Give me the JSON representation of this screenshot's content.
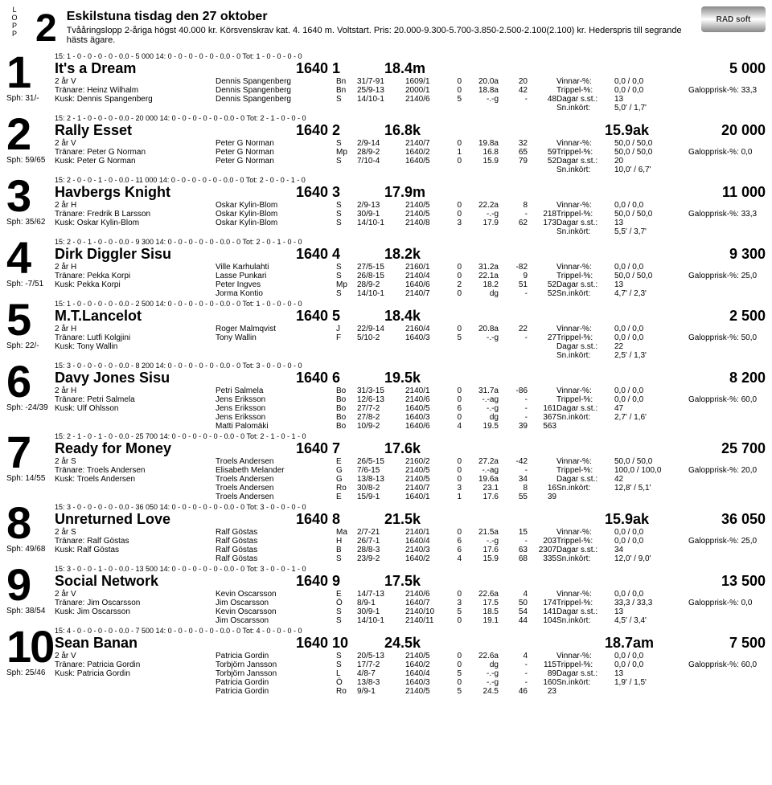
{
  "header": {
    "lopp_label": "L\nO\nP\nP",
    "race_no": "2",
    "title": "Eskilstuna tisdag den 27 oktober",
    "description": "Tvååringslopp 2-åriga högst 40.000 kr. Körsvenskrav kat. 4. 1640 m. Voltstart. Pris: 20.000-9.300-5.700-3.850-2.500-2.100(2.100) kr. Hederspris till segrande hästs ägare.",
    "logo_text": "RAD soft"
  },
  "entries": [
    {
      "num": "1",
      "sph": "Sph: 31/-",
      "stats_top": "15: 1   - 0   - 0   - 0   - 0   - 0.0         - 5 000                           14: 0   - 0   - 0   - 0   - 0   - 0.0            - 0                                                  Tot: 1   - 0   - 0   - 0   - 0",
      "name": "It's a Dream",
      "dist": "1640  1",
      "rec": "18.4m",
      "extra": "",
      "prize": "5 000",
      "age": "2 år  V",
      "trainer": "Tränare: Heinz Wilhalm",
      "kusk": "Kusk: Dennis Spangenberg",
      "right": [
        [
          "Vinnar-%:",
          "0,0 / 0,0",
          ""
        ],
        [
          "Trippel-%:",
          "0,0 / 0,0",
          "Galopprisk-%:       33,3"
        ],
        [
          "Dagar s.st.:",
          "13",
          ""
        ],
        [
          "Sn.inkört:",
          "5,0' / 1,7'",
          ""
        ]
      ],
      "results": [
        [
          "Dennis Spangenberg",
          "Bn",
          "31/7-91",
          "1609/1",
          "0",
          "20.0a",
          "20",
          ""
        ],
        [
          "Dennis Spangenberg",
          "Bn",
          "25/9-13",
          "2000/1",
          "0",
          "18.8a",
          "42",
          ""
        ],
        [
          "Dennis Spangenberg",
          "S",
          "14/10-1",
          "2140/6",
          "5",
          "-.-g",
          "-",
          "48"
        ]
      ]
    },
    {
      "num": "2",
      "sph": "Sph: 59/65",
      "stats_top": "15: 2   - 1   - 0   - 0   - 0   - 0.0         - 20 000                          14: 0   - 0   - 0   - 0   - 0   - 0.0            - 0                                                  Tot: 2   - 1   - 0   - 0   - 0",
      "name": "Rally Esset",
      "dist": "1640  2",
      "rec": "16.8k",
      "extra": "15.9ak",
      "prize": "20 000",
      "age": "2 år  V",
      "trainer": "Tränare: Peter G Norman",
      "kusk": "Kusk: Peter G Norman",
      "right": [
        [
          "Vinnar-%:",
          "50,0 / 50,0",
          ""
        ],
        [
          "Trippel-%:",
          "50,0 / 50,0",
          "Galopprisk-%:       0,0"
        ],
        [
          "Dagar s.st.:",
          "20",
          ""
        ],
        [
          "Sn.inkört:",
          "10,0' / 6,7'",
          ""
        ]
      ],
      "results": [
        [
          "Peter G Norman",
          "S",
          "2/9-14",
          "2140/7",
          "0",
          "19.8a",
          "32",
          ""
        ],
        [
          "Peter G Norman",
          "Mp",
          "28/9-2",
          "1640/2",
          "1",
          "16.8",
          "65",
          "59"
        ],
        [
          "Peter G Norman",
          "S",
          "7/10-4",
          "1640/5",
          "0",
          "15.9",
          "79",
          "52"
        ]
      ]
    },
    {
      "num": "3",
      "sph": "Sph: 35/62",
      "stats_top": "15: 2   - 0   - 0   - 1   - 0   - 0.0         - 11 000                          14: 0   - 0   - 0   - 0   - 0   - 0.0            - 0                                                  Tot: 2   - 0   - 0   - 1   - 0",
      "name": "Havbergs Knight",
      "dist": "1640  3",
      "rec": "17.9m",
      "extra": "",
      "prize": "11 000",
      "age": "2 år  H",
      "trainer": "Tränare: Fredrik B Larsson",
      "kusk": "Kusk: Oskar Kylin-Blom",
      "right": [
        [
          "Vinnar-%:",
          "0,0 / 0,0",
          ""
        ],
        [
          "Trippel-%:",
          "50,0 / 50,0",
          "Galopprisk-%:       33,3"
        ],
        [
          "Dagar s.st.:",
          "13",
          ""
        ],
        [
          "Sn.inkört:",
          "5,5' / 3,7'",
          ""
        ]
      ],
      "results": [
        [
          "Oskar Kylin-Blom",
          "S",
          "2/9-13",
          "2140/5",
          "0",
          "22.2a",
          "8",
          ""
        ],
        [
          "Oskar Kylin-Blom",
          "S",
          "30/9-1",
          "2140/5",
          "0",
          "-.-g",
          "-",
          "218"
        ],
        [
          "Oskar Kylin-Blom",
          "S",
          "14/10-1",
          "2140/8",
          "3",
          "17.9",
          "62",
          "173"
        ]
      ]
    },
    {
      "num": "4",
      "sph": "Sph: -7/51",
      "stats_top": "15: 2   - 0   - 1   - 0   - 0   - 0.0         - 9 300                           14: 0   - 0   - 0   - 0   - 0   - 0.0            - 0                                                  Tot: 2   - 0   - 1   - 0   - 0",
      "name": "Dirk Diggler Sisu",
      "dist": "1640  4",
      "rec": "18.2k",
      "extra": "",
      "prize": "9 300",
      "age": "2 år  H",
      "trainer": "Tränare: Pekka Korpi",
      "kusk": "Kusk: Pekka Korpi",
      "right": [
        [
          "Vinnar-%:",
          "0,0 / 0,0",
          ""
        ],
        [
          "Trippel-%:",
          "50,0 / 50,0",
          "Galopprisk-%:       25,0"
        ],
        [
          "Dagar s.st.:",
          "13",
          ""
        ],
        [
          "Sn.inkört:",
          "4,7' / 2,3'",
          ""
        ]
      ],
      "results": [
        [
          "Ville Karhulahti",
          "S",
          "27/5-15",
          "2160/1",
          "0",
          "31.2a",
          "-82",
          ""
        ],
        [
          "Lasse Punkari",
          "S",
          "26/8-15",
          "2140/4",
          "0",
          "22.1a",
          "9",
          ""
        ],
        [
          "Peter Ingves",
          "Mp",
          "28/9-2",
          "1640/6",
          "2",
          "18.2",
          "51",
          "52"
        ],
        [
          "Jorma Kontio",
          "S",
          "14/10-1",
          "2140/7",
          "0",
          "dg",
          "-",
          "52"
        ]
      ]
    },
    {
      "num": "5",
      "sph": "Sph: 22/-",
      "stats_top": "15: 1   - 0   - 0   - 0   - 0   - 0.0         - 2 500                           14: 0   - 0   - 0   - 0   - 0   - 0.0            - 0                                                  Tot: 1   - 0   - 0   - 0   - 0",
      "name": "M.T.Lancelot",
      "dist": "1640  5",
      "rec": "18.4k",
      "extra": "",
      "prize": "2 500",
      "age": "2 år  H",
      "trainer": "Tränare: Lutfi Kolgjini",
      "kusk": "Kusk: Tony Wallin",
      "right": [
        [
          "Vinnar-%:",
          "0,0 / 0,0",
          ""
        ],
        [
          "Trippel-%:",
          "0,0 / 0,0",
          "Galopprisk-%:       50,0"
        ],
        [
          "Dagar s.st.:",
          "22",
          ""
        ],
        [
          "Sn.inkört:",
          "2,5' / 1,3'",
          ""
        ]
      ],
      "results": [
        [
          "Roger Malmqvist",
          "J",
          "22/9-14",
          "2160/4",
          "0",
          "20.8a",
          "22",
          ""
        ],
        [
          "Tony Wallin",
          "F",
          "5/10-2",
          "1640/3",
          "5",
          "-.-g",
          "-",
          "27"
        ]
      ]
    },
    {
      "num": "6",
      "sph": "Sph: -24/39",
      "stats_top": "15: 3   - 0   - 0   - 0   - 0   - 0.0         - 8 200                           14: 0   - 0   - 0   - 0   - 0   - 0.0            - 0                                                  Tot: 3   - 0   - 0   - 0   - 0",
      "name": "Davy Jones Sisu",
      "dist": "1640  6",
      "rec": "19.5k",
      "extra": "",
      "prize": "8 200",
      "age": "2 år  H",
      "trainer": "Tränare: Petri Salmela",
      "kusk": "Kusk: Ulf Ohlsson",
      "right": [
        [
          "Vinnar-%:",
          "0,0 / 0,0",
          ""
        ],
        [
          "Trippel-%:",
          "0,0 / 0,0",
          "Galopprisk-%:       60,0"
        ],
        [
          "Dagar s.st.:",
          "47",
          ""
        ],
        [
          "Sn.inkört:",
          "2,7' / 1,6'",
          ""
        ]
      ],
      "results": [
        [
          "Petri Salmela",
          "Bo",
          "31/3-15",
          "2140/1",
          "0",
          "31.7a",
          "-86",
          ""
        ],
        [
          "Jens Eriksson",
          "Bo",
          "12/6-13",
          "2140/6",
          "0",
          "-.-ag",
          "-",
          ""
        ],
        [
          "Jens Eriksson",
          "Bo",
          "27/7-2",
          "1640/5",
          "6",
          "-.-g",
          "-",
          "161"
        ],
        [
          "Jens Eriksson",
          "Bo",
          "27/8-2",
          "1640/3",
          "0",
          "dg",
          "-",
          "367"
        ],
        [
          "Matti Palomäki",
          "Bo",
          "10/9-2",
          "1640/6",
          "4",
          "19.5",
          "39",
          "563"
        ]
      ]
    },
    {
      "num": "7",
      "sph": "Sph: 14/55",
      "stats_top": "15: 2   - 1   - 0   - 1   - 0   - 0.0         - 25 700                          14: 0   - 0   - 0   - 0   - 0   - 0.0            - 0                                                  Tot: 2   - 1   - 0   - 1   - 0",
      "name": "Ready for Money",
      "dist": "1640  7",
      "rec": "17.6k",
      "extra": "",
      "prize": "25 700",
      "age": "2 år  S",
      "trainer": "Tränare: Troels Andersen",
      "kusk": "Kusk: Troels Andersen",
      "right": [
        [
          "Vinnar-%:",
          "50,0 / 50,0",
          ""
        ],
        [
          "Trippel-%:",
          "100,0 / 100,0",
          "Galopprisk-%:       20,0"
        ],
        [
          "Dagar s.st.:",
          "42",
          ""
        ],
        [
          "Sn.inkört:",
          "12,8' / 5,1'",
          ""
        ]
      ],
      "results": [
        [
          "Troels Andersen",
          "E",
          "26/5-15",
          "2160/2",
          "0",
          "27.2a",
          "-42",
          ""
        ],
        [
          "Elisabeth Melander",
          "G",
          "7/6-15",
          "2140/5",
          "0",
          "-.-ag",
          "-",
          ""
        ],
        [
          "Troels Andersen",
          "G",
          "13/8-13",
          "2140/5",
          "0",
          "19.6a",
          "34",
          ""
        ],
        [
          "Troels Andersen",
          "Ro",
          "30/8-2",
          "2140/7",
          "3",
          "23.1",
          "8",
          "16"
        ],
        [
          "Troels Andersen",
          "E",
          "15/9-1",
          "1640/1",
          "1",
          "17.6",
          "55",
          "39"
        ]
      ]
    },
    {
      "num": "8",
      "sph": "Sph: 49/68",
      "stats_top": "15: 3   - 0   - 0   - 0   - 0   - 0.0         - 36 050                          14: 0   - 0   - 0   - 0   - 0   - 0.0            - 0                                                  Tot: 3   - 0   - 0   - 0   - 0",
      "name": "Unreturned Love",
      "dist": "1640  8",
      "rec": "21.5k",
      "extra": "15.9ak",
      "prize": "36 050",
      "age": "2 år  S",
      "trainer": "Tränare: Ralf Göstas",
      "kusk": "Kusk: Ralf Göstas",
      "right": [
        [
          "Vinnar-%:",
          "0,0 / 0,0",
          ""
        ],
        [
          "Trippel-%:",
          "0,0 / 0,0",
          "Galopprisk-%:       25,0"
        ],
        [
          "Dagar s.st.:",
          "34",
          ""
        ],
        [
          "Sn.inkört:",
          "12,0' / 9,0'",
          ""
        ]
      ],
      "results": [
        [
          "Ralf Göstas",
          "Ma",
          "2/7-21",
          "2140/1",
          "0",
          "21.5a",
          "15",
          ""
        ],
        [
          "Ralf Göstas",
          "H",
          "26/7-1",
          "1640/4",
          "6",
          "-.-g",
          "-",
          "203"
        ],
        [
          "Ralf Göstas",
          "B",
          "28/8-3",
          "2140/3",
          "6",
          "17.6",
          "63",
          "2307"
        ],
        [
          "Ralf Göstas",
          "S",
          "23/9-2",
          "1640/2",
          "4",
          "15.9",
          "68",
          "335"
        ]
      ]
    },
    {
      "num": "9",
      "sph": "Sph: 38/54",
      "stats_top": "15: 3   - 0   - 0   - 1   - 0   - 0.0         - 13 500                          14: 0   - 0   - 0   - 0   - 0   - 0.0            - 0                                                  Tot: 3   - 0   - 0   - 1   - 0",
      "name": "Social Network",
      "dist": "1640  9",
      "rec": "17.5k",
      "extra": "",
      "prize": "13 500",
      "age": "2 år  V",
      "trainer": "Tränare: Jim Oscarsson",
      "kusk": "Kusk: Jim Oscarsson",
      "right": [
        [
          "Vinnar-%:",
          "0,0 / 0,0",
          ""
        ],
        [
          "Trippel-%:",
          "33,3 / 33,3",
          "Galopprisk-%:       0,0"
        ],
        [
          "Dagar s.st.:",
          "13",
          ""
        ],
        [
          "Sn.inkört:",
          "4,5' / 3,4'",
          ""
        ]
      ],
      "results": [
        [
          "Kevin Oscarsson",
          "E",
          "14/7-13",
          "2140/6",
          "0",
          "22.6a",
          "4",
          ""
        ],
        [
          "Jim Oscarsson",
          "Ö",
          "8/9-1",
          "1640/7",
          "3",
          "17.5",
          "50",
          "174"
        ],
        [
          "Kevin Oscarsson",
          "S",
          "30/9-1",
          "2140/10",
          "5",
          "18.5",
          "54",
          "141"
        ],
        [
          "Jim Oscarsson",
          "S",
          "14/10-1",
          "2140/11",
          "0",
          "19.1",
          "44",
          "104"
        ]
      ]
    },
    {
      "num": "10",
      "sph": "Sph: 25/46",
      "stats_top": "15: 4   - 0   - 0   - 0   - 0   - 0.0         - 7 500                           14: 0   - 0   - 0   - 0   - 0   - 0.0            - 0                                                  Tot: 4   - 0   - 0   - 0   - 0",
      "name": "Sean Banan",
      "dist": "1640 10",
      "rec": "24.5k",
      "extra": "18.7am",
      "prize": "7 500",
      "age": "2 år  V",
      "trainer": "Tränare: Patricia Gordin",
      "kusk": "Kusk: Patricia Gordin",
      "right": [
        [
          "Vinnar-%:",
          "0,0 / 0,0",
          ""
        ],
        [
          "Trippel-%:",
          "0,0 / 0,0",
          "Galopprisk-%:       60,0"
        ],
        [
          "Dagar s.st.:",
          "13",
          ""
        ],
        [
          "Sn.inkört:",
          "1,9' / 1,5'",
          ""
        ]
      ],
      "results": [
        [
          "Patricia Gordin",
          "S",
          "20/5-13",
          "2140/5",
          "0",
          "22.6a",
          "4",
          ""
        ],
        [
          "Torbjörn Jansson",
          "S",
          "17/7-2",
          "1640/2",
          "0",
          "dg",
          "-",
          "115"
        ],
        [
          "Torbjörn Jansson",
          "L",
          "4/8-7",
          "1640/4",
          "5",
          "-.-g",
          "-",
          "89"
        ],
        [
          "Patricia Gordin",
          "Ö",
          "13/8-3",
          "1640/3",
          "0",
          "-.-g",
          "-",
          "160"
        ],
        [
          "Patricia Gordin",
          "Ro",
          "9/9-1",
          "2140/5",
          "5",
          "24.5",
          "46",
          "23"
        ]
      ]
    }
  ]
}
